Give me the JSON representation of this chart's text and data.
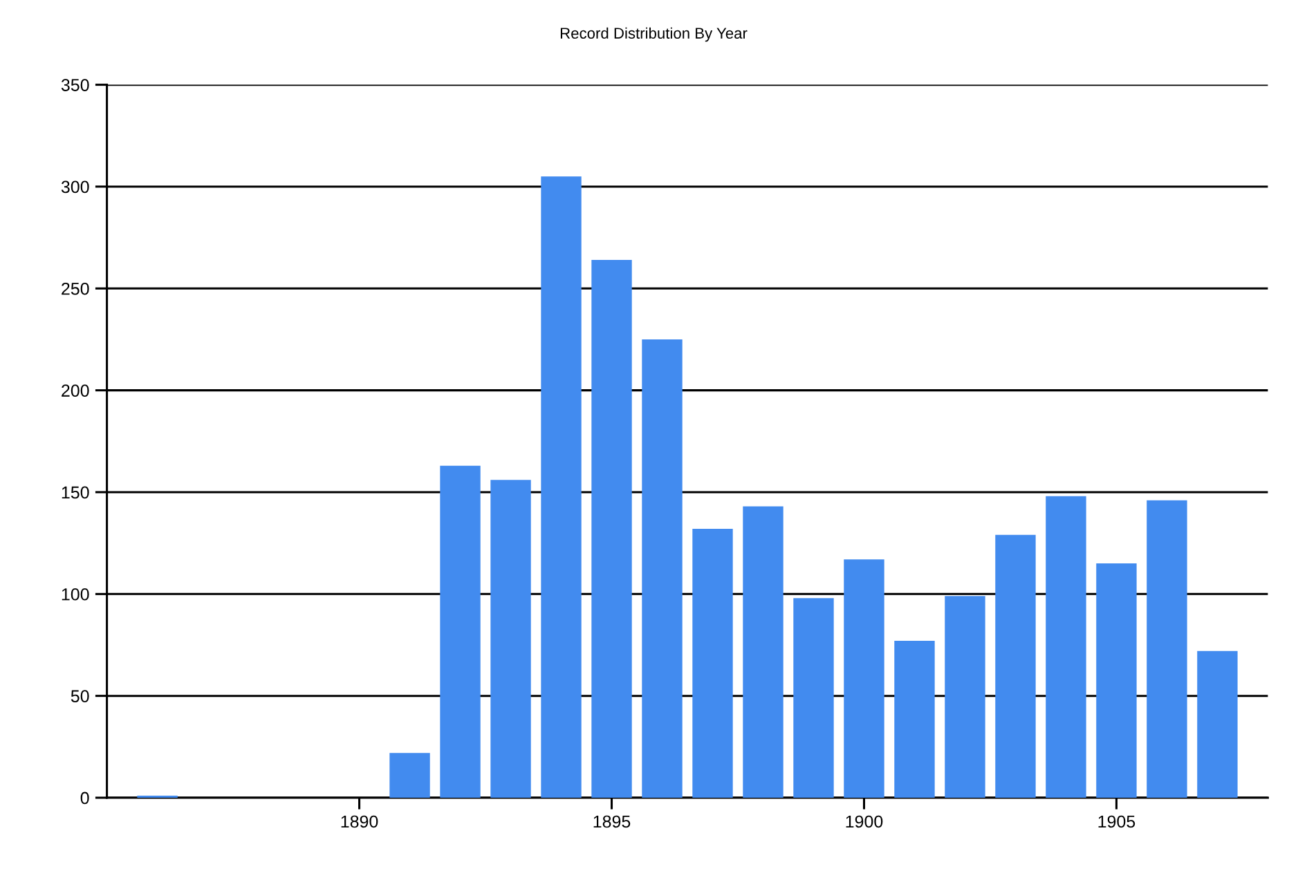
{
  "chart_data": {
    "type": "bar",
    "title": "Record Distribution By Year",
    "x": [
      1886,
      1891,
      1892,
      1893,
      1894,
      1895,
      1896,
      1897,
      1898,
      1899,
      1900,
      1901,
      1902,
      1903,
      1904,
      1905,
      1906,
      1907
    ],
    "values": [
      1,
      22,
      163,
      156,
      305,
      264,
      225,
      132,
      143,
      98,
      117,
      77,
      99,
      129,
      148,
      115,
      146,
      72
    ],
    "color": "#428bef",
    "xlim": [
      1885,
      1908
    ],
    "xticks": [
      1890,
      1895,
      1900,
      1905
    ],
    "ylim": [
      0,
      350
    ],
    "yticks": [
      0,
      50,
      100,
      150,
      200,
      250,
      300,
      350
    ],
    "grid": "y"
  }
}
